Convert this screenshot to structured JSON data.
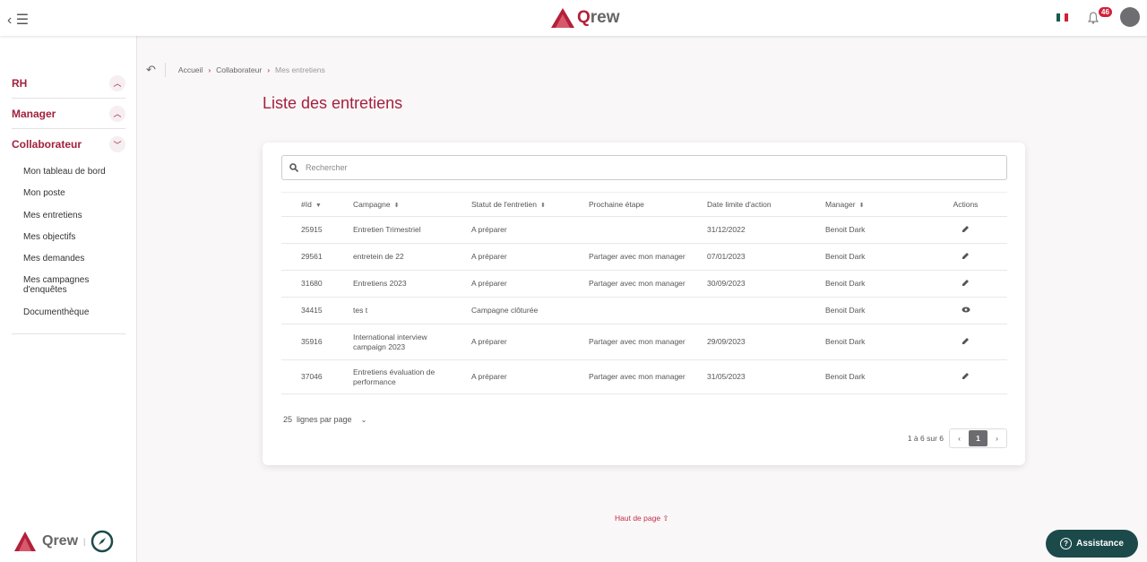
{
  "header": {
    "brand": "Qrew",
    "notifications": "46",
    "flag_colors": [
      "#1a5b4b",
      "#ffffff",
      "#d0213a"
    ]
  },
  "sidebar": {
    "sections": [
      {
        "label": "RH",
        "icon": "chevron-up"
      },
      {
        "label": "Manager",
        "icon": "chevron-up"
      },
      {
        "label": "Collaborateur",
        "icon": "chevron-down"
      }
    ],
    "items": [
      "Mon tableau de bord",
      "Mon poste",
      "Mes entretiens",
      "Mes objectifs",
      "Mes demandes",
      "Mes campagnes d'enquêtes",
      "Documenthèque"
    ]
  },
  "breadcrumb": [
    "Accueil",
    "Collaborateur",
    "Mes entretiens"
  ],
  "page_title": "Liste des entretiens",
  "search": {
    "placeholder": "Rechercher"
  },
  "table": {
    "headers": [
      "#Id",
      "Campagne",
      "Statut de l'entretien",
      "Prochaine étape",
      "Date limite d'action",
      "Manager",
      "Actions"
    ],
    "rows": [
      [
        "25915",
        "Entretien Trimestriel",
        "A préparer",
        "",
        "31/12/2022",
        "Benoit Dark",
        "edit"
      ],
      [
        "29561",
        "entretein de 22",
        "A préparer",
        "Partager avec mon manager",
        "07/01/2023",
        "Benoit Dark",
        "edit"
      ],
      [
        "31680",
        "Entretiens 2023",
        "A préparer",
        "Partager avec mon manager",
        "30/09/2023",
        "Benoit Dark",
        "edit"
      ],
      [
        "34415",
        "tes t",
        "Campagne clôturée",
        "",
        "",
        "Benoit Dark",
        "view"
      ],
      [
        "35916",
        "International interview campaign 2023",
        "A préparer",
        "Partager avec mon manager",
        "29/09/2023",
        "Benoit Dark",
        "edit"
      ],
      [
        "37046",
        "Entretiens évaluation de performance",
        "A préparer",
        "Partager avec mon manager",
        "31/05/2023",
        "Benoit Dark",
        "edit"
      ]
    ]
  },
  "pagination": {
    "page_size": "25",
    "page_size_label": "lignes par page",
    "summary": "1 à 6 sur 6",
    "current_page": "1"
  },
  "footer": {
    "back_to_top": "Haut de page",
    "assistance": "Assistance"
  },
  "colors": {
    "accent": "#a3213d",
    "assist": "#1c4a4a"
  }
}
